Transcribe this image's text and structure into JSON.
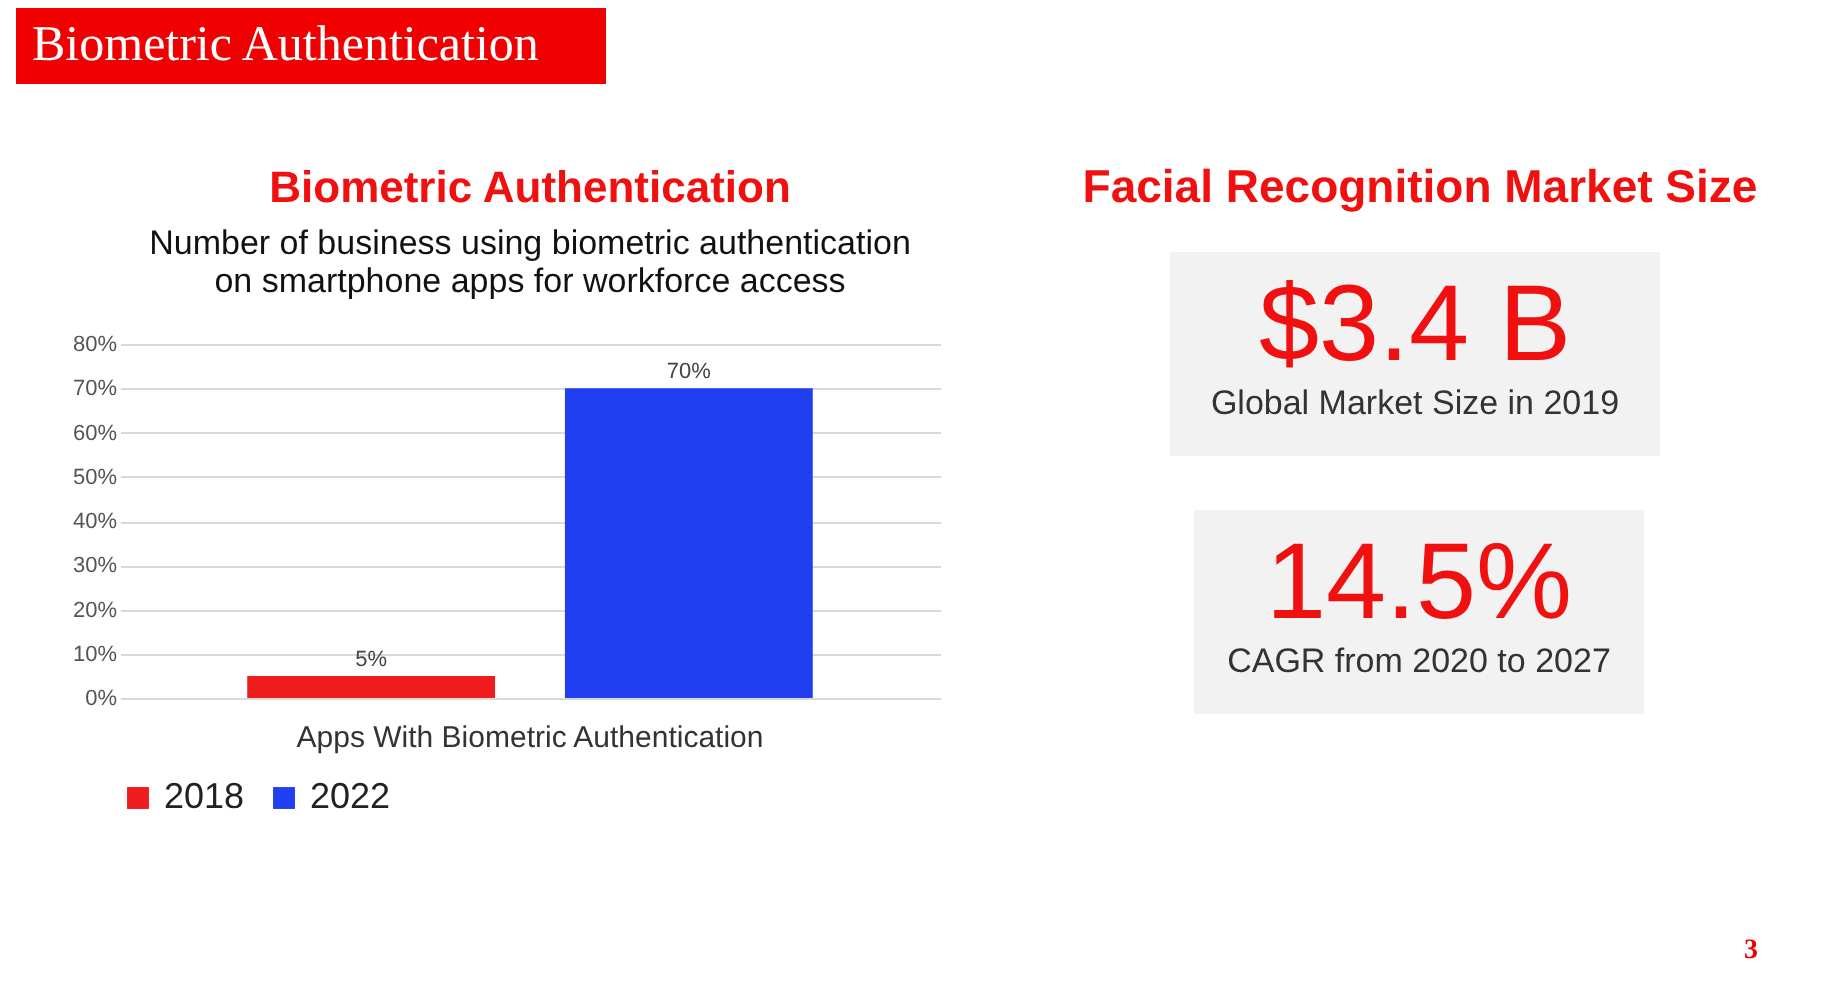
{
  "chart_data": [
    {
      "type": "other",
      "title": "Biometric Authentication",
      "annotations": [
        "3"
      ]
    },
    {
      "type": "bar",
      "title": "Biometric Authentication",
      "subtitle": "Number of business using biometric authentication on smartphone apps for workforce access",
      "categories": [
        "Apps With Biometric Authentication"
      ],
      "series": [
        {
          "name": "2018",
          "color": "#ee1c1c",
          "values": [
            5
          ],
          "value_labels": [
            "5%"
          ]
        },
        {
          "name": "2022",
          "color": "#1f3ff0",
          "values": [
            70
          ],
          "value_labels": [
            "70%"
          ]
        }
      ],
      "ylim": [
        0,
        80
      ],
      "yticks": [
        {
          "value": 0,
          "label": "0%"
        },
        {
          "value": 10,
          "label": "10%"
        },
        {
          "value": 20,
          "label": "20%"
        },
        {
          "value": 30,
          "label": "30%"
        },
        {
          "value": 40,
          "label": "40%"
        },
        {
          "value": 50,
          "label": "50%"
        },
        {
          "value": 60,
          "label": "60%"
        },
        {
          "value": 70,
          "label": "70%"
        },
        {
          "value": 80,
          "label": "80%"
        }
      ],
      "grid": "y",
      "legend": "bottom"
    },
    {
      "type": "other",
      "title": "Facial Recognition Market Size",
      "annotations": [
        "$3.4 B",
        "Global Market Size in 2019",
        "14.5%",
        "CAGR from 2020 to 2027"
      ]
    }
  ]
}
